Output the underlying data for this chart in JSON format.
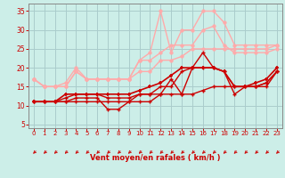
{
  "xlabel": "Vent moyen/en rafales ( km/h )",
  "bg_color": "#cceee8",
  "grid_color": "#aacccc",
  "xlim": [
    -0.5,
    23.5
  ],
  "ylim": [
    4,
    37
  ],
  "yticks": [
    5,
    10,
    15,
    20,
    25,
    30,
    35
  ],
  "xticks": [
    0,
    1,
    2,
    3,
    4,
    5,
    6,
    7,
    8,
    9,
    10,
    11,
    12,
    13,
    14,
    15,
    16,
    17,
    18,
    19,
    20,
    21,
    22,
    23
  ],
  "lines": [
    {
      "x": [
        0,
        1,
        2,
        3,
        4,
        5,
        6,
        7,
        8,
        9,
        10,
        11,
        12,
        13,
        14,
        15,
        16,
        17,
        18,
        19,
        20,
        21,
        22,
        23
      ],
      "y": [
        11,
        11,
        11,
        11,
        11,
        11,
        11,
        11,
        11,
        11,
        11,
        11,
        13,
        13,
        13,
        13,
        14,
        15,
        15,
        15,
        15,
        15,
        15,
        19
      ],
      "color": "#cc0000",
      "lw": 1.0,
      "marker": "+",
      "ms": 3,
      "mew": 1.0,
      "zorder": 5
    },
    {
      "x": [
        0,
        1,
        2,
        3,
        4,
        5,
        6,
        7,
        8,
        9,
        10,
        11,
        12,
        13,
        14,
        15,
        16,
        17,
        18,
        19,
        20,
        21,
        22,
        23
      ],
      "y": [
        11,
        11,
        11,
        11,
        12,
        12,
        12,
        9,
        9,
        11,
        13,
        13,
        13,
        17,
        13,
        20,
        24,
        20,
        19,
        13,
        15,
        15,
        16,
        19
      ],
      "color": "#cc0000",
      "lw": 1.0,
      "marker": "+",
      "ms": 3,
      "mew": 1.0,
      "zorder": 5
    },
    {
      "x": [
        0,
        1,
        2,
        3,
        4,
        5,
        6,
        7,
        8,
        9,
        10,
        11,
        12,
        13,
        14,
        15,
        16,
        17,
        18,
        19,
        20,
        21,
        22,
        23
      ],
      "y": [
        11,
        11,
        11,
        12,
        13,
        13,
        13,
        12,
        12,
        12,
        13,
        13,
        15,
        15,
        19,
        20,
        20,
        20,
        19,
        15,
        15,
        15,
        16,
        19
      ],
      "color": "#cc0000",
      "lw": 1.0,
      "marker": "+",
      "ms": 3,
      "mew": 1.0,
      "zorder": 5
    },
    {
      "x": [
        0,
        1,
        2,
        3,
        4,
        5,
        6,
        7,
        8,
        9,
        10,
        11,
        12,
        13,
        14,
        15,
        16,
        17,
        18,
        19,
        20,
        21,
        22,
        23
      ],
      "y": [
        11,
        11,
        11,
        13,
        13,
        13,
        13,
        13,
        13,
        13,
        14,
        15,
        16,
        18,
        20,
        20,
        20,
        20,
        19,
        15,
        15,
        16,
        17,
        20
      ],
      "color": "#cc0000",
      "lw": 1.2,
      "marker": "+",
      "ms": 3,
      "mew": 1.2,
      "zorder": 5
    },
    {
      "x": [
        0,
        1,
        2,
        3,
        4,
        5,
        6,
        7,
        8,
        9,
        10,
        11,
        12,
        13,
        14,
        15,
        16,
        17,
        18,
        19,
        20,
        21,
        22,
        23
      ],
      "y": [
        17,
        15,
        15,
        15,
        19,
        17,
        17,
        17,
        17,
        17,
        19,
        19,
        22,
        22,
        23,
        25,
        25,
        25,
        25,
        25,
        25,
        25,
        25,
        26
      ],
      "color": "#ffaaaa",
      "lw": 1.0,
      "marker": "o",
      "ms": 2.5,
      "mew": 0.5,
      "zorder": 3
    },
    {
      "x": [
        0,
        1,
        2,
        3,
        4,
        5,
        6,
        7,
        8,
        9,
        10,
        11,
        12,
        13,
        14,
        15,
        16,
        17,
        18,
        19,
        20,
        21,
        22,
        23
      ],
      "y": [
        17,
        15,
        15,
        16,
        20,
        17,
        17,
        17,
        17,
        17,
        22,
        24,
        35,
        24,
        30,
        30,
        35,
        35,
        32,
        26,
        26,
        26,
        26,
        26
      ],
      "color": "#ffaaaa",
      "lw": 1.0,
      "marker": "o",
      "ms": 2.5,
      "mew": 0.5,
      "zorder": 3
    },
    {
      "x": [
        0,
        1,
        2,
        3,
        4,
        5,
        6,
        7,
        8,
        9,
        10,
        11,
        12,
        13,
        14,
        15,
        16,
        17,
        18,
        19,
        20,
        21,
        22,
        23
      ],
      "y": [
        17,
        15,
        15,
        15,
        19,
        17,
        17,
        17,
        17,
        17,
        22,
        22,
        24,
        26,
        26,
        26,
        30,
        31,
        26,
        24,
        24,
        24,
        24,
        25
      ],
      "color": "#ffaaaa",
      "lw": 1.0,
      "marker": "o",
      "ms": 2.5,
      "mew": 0.5,
      "zorder": 3
    }
  ],
  "arrow_color": "#cc0000",
  "xlabel_color": "#cc0000",
  "tick_color": "#cc0000",
  "spine_color": "#888888"
}
